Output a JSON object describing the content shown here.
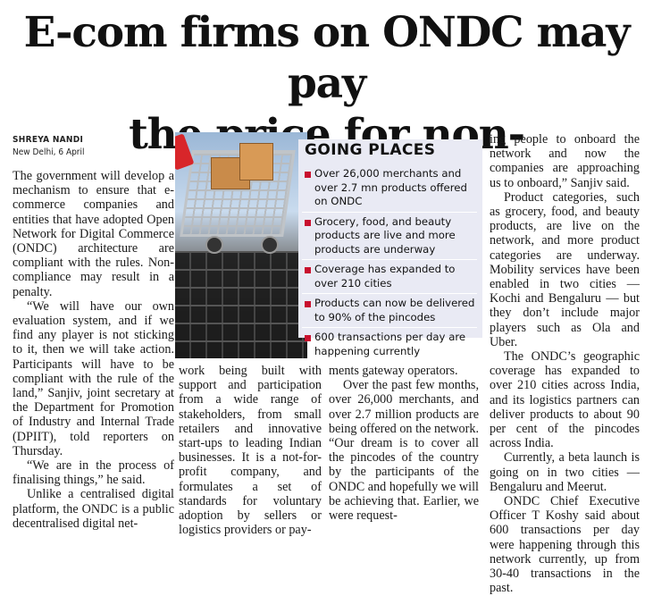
{
  "headline": {
    "line1": "E-com firms on ONDC may pay",
    "line2": "the price for non-compliance"
  },
  "byline": {
    "author": "SHREYA NANDI",
    "dateline": "New Delhi, 6 April"
  },
  "infobox": {
    "title": "GOING PLACES",
    "bullet_color": "#c8102e",
    "background": "#e9eaf4",
    "items": [
      "Over 26,000 merchants and over 2.7 mn products offered on ONDC",
      "Grocery, food, and beauty products are live and more products are underway",
      "Coverage has expanded to over 210 cities",
      "Products can now be delivered to 90% of the pincodes",
      "600 transactions per day are happening currently"
    ]
  },
  "columns": {
    "col1": [
      "The government will develop a mechanism to ensure that e-commerce companies and entities that have adopted Open Network for Digital Commerce (ONDC) architecture are compliant with the rules. Non-compliance may result in a penalty.",
      "“We will have our own evaluation system, and if we find any player is not sticking to it, then we will take action. Participants will have to be compliant with the rule of the land,” Sanjiv, joint secretary at the Department for Promotion of Industry and Internal Trade (DPIIT), told reporters on Thursday.",
      "“We are in the process of finalising things,” he said.",
      "Unlike a centralised digital platform, the ONDC is a public decentralised digital net-"
    ],
    "col2": [
      "work being built with support and participation from a wide range of stakeholders, from small retailers and innovative start-ups to leading Indian businesses. It is a not-for-profit company, and formulates a set of standards for voluntary adoption by sellers or logistics providers or pay-"
    ],
    "col3": [
      "ments gateway operators.",
      "Over the past few months, over 26,000 merchants, and over 2.7 million products are being offered on the network. “Our dream is to cover all the pincodes of the country by the participants of the ONDC and hopefully we will be achieving that. Earlier, we were request-"
    ],
    "col4": [
      "ing people to onboard the network and now the companies are approaching us to onboard,” Sanjiv said.",
      "Product categories, such as grocery, food, and beauty products, are live on the network, and more product categories are underway. Mobility services have been enabled in two cities — Kochi and Bengaluru — but they don’t include major players such as Ola and Uber.",
      "The ONDC’s geographic coverage has expanded to over 210 cities across India, and its logistics partners can deliver products to about 90 per cent of the pincodes across India.",
      "Currently, a beta launch is going on in two cities — Bengaluru and Meerut.",
      "ONDC Chief Executive Officer T Koshy said about 600 transactions per day were happening through this network currently, up from 30-40 transactions in the past."
    ]
  }
}
